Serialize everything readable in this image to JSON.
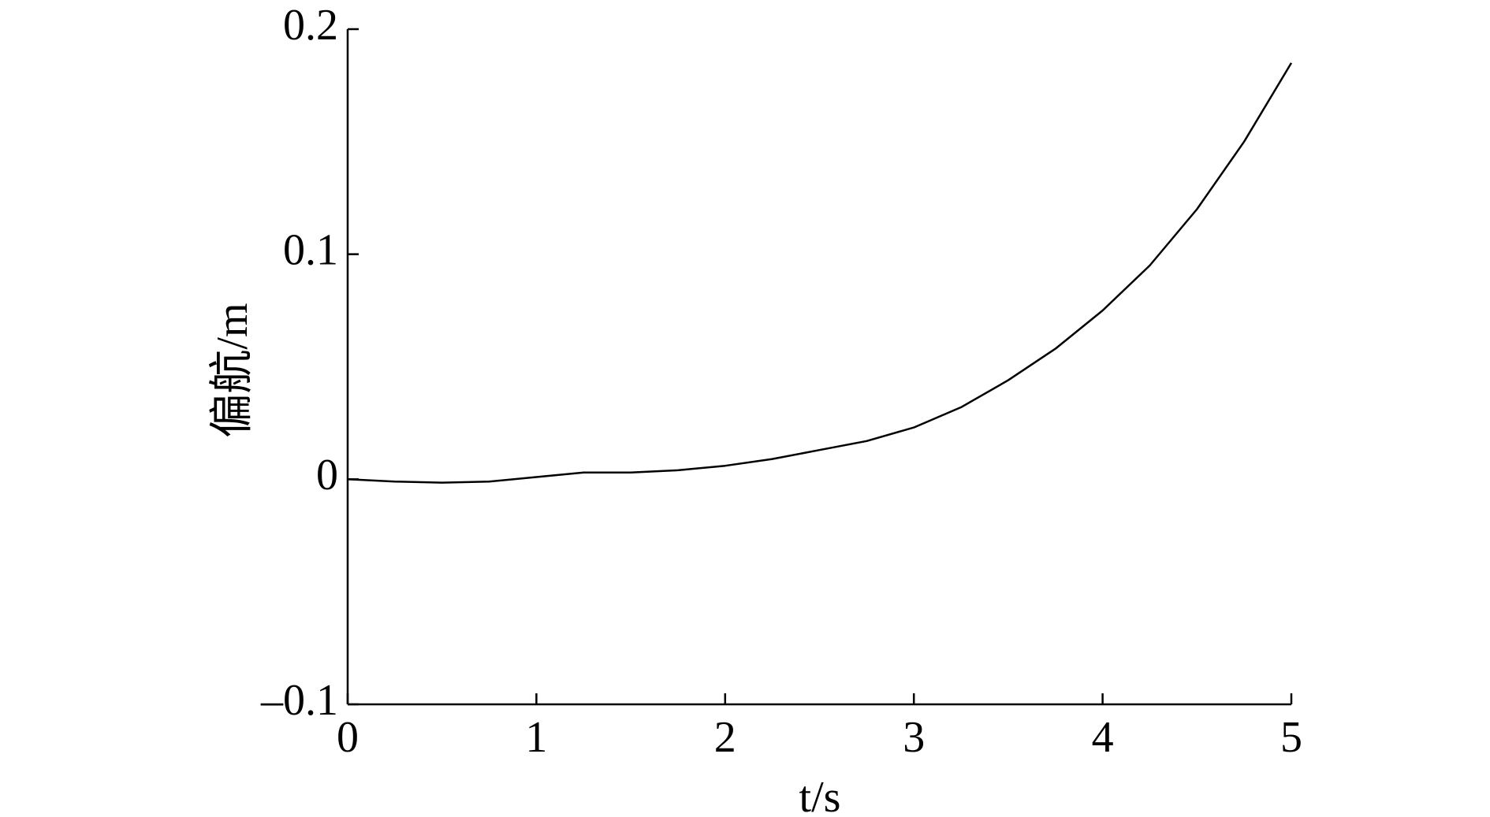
{
  "chart_data": {
    "type": "line",
    "xlabel": "t/s",
    "ylabel": "偏航/m",
    "x": [
      0,
      0.25,
      0.5,
      0.75,
      1.0,
      1.25,
      1.5,
      1.75,
      2.0,
      2.25,
      2.5,
      2.75,
      3.0,
      3.25,
      3.5,
      3.75,
      4.0,
      4.25,
      4.5,
      4.75,
      5.0
    ],
    "values": [
      0,
      -0.001,
      -0.0015,
      -0.001,
      0.001,
      0.003,
      0.003,
      0.004,
      0.006,
      0.009,
      0.013,
      0.017,
      0.023,
      0.032,
      0.044,
      0.058,
      0.075,
      0.095,
      0.12,
      0.15,
      0.185
    ],
    "color": "#000000",
    "xlim": [
      0,
      5
    ],
    "xticks": [
      0,
      1,
      2,
      3,
      4,
      5
    ],
    "ylim": [
      -0.1,
      0.2
    ],
    "yticks": [
      {
        "value": -0.1,
        "label": "–0.1"
      },
      0,
      0.1,
      0.2
    ]
  }
}
